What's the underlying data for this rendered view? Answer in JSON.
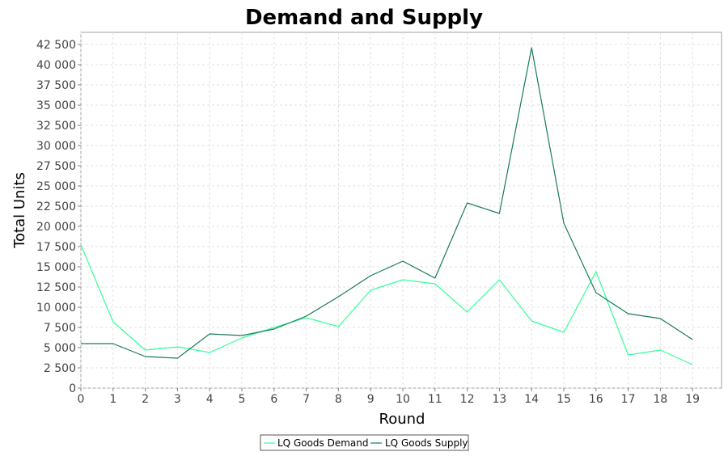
{
  "chart_data": {
    "type": "line",
    "title": "Demand and Supply",
    "xlabel": "Round",
    "ylabel": "Total Units",
    "xlim": [
      0,
      19.9
    ],
    "ylim": [
      0,
      44000
    ],
    "grid": true,
    "legend_position": "bottom",
    "x": [
      0,
      1,
      2,
      3,
      4,
      5,
      6,
      7,
      8,
      9,
      10,
      11,
      12,
      13,
      14,
      15,
      16,
      17,
      18,
      19
    ],
    "x_tick_labels": [
      "0",
      "1",
      "2",
      "3",
      "4",
      "5",
      "6",
      "7",
      "8",
      "9",
      "10",
      "11",
      "12",
      "13",
      "14",
      "15",
      "16",
      "17",
      "18",
      "19"
    ],
    "y_ticks": [
      0,
      2500,
      5000,
      7500,
      10000,
      12500,
      15000,
      17500,
      20000,
      22500,
      25000,
      27500,
      30000,
      32500,
      35000,
      37500,
      40000,
      42500
    ],
    "y_tick_labels": [
      "0",
      "2 500",
      "5 000",
      "7 500",
      "10 000",
      "12 500",
      "15 000",
      "17 500",
      "20 000",
      "22 500",
      "25 000",
      "27 500",
      "30 000",
      "32 500",
      "35 000",
      "37 500",
      "40 000",
      "42 500"
    ],
    "series": [
      {
        "name": "LQ Goods Demand",
        "color": "#33ff99",
        "values": [
          17700,
          8200,
          4700,
          5100,
          4400,
          6200,
          7500,
          8700,
          7600,
          12100,
          13400,
          12900,
          9400,
          13400,
          8300,
          6900,
          14400,
          4100,
          4700,
          2900
        ]
      },
      {
        "name": "LQ Goods Supply",
        "color": "#1a7a5a",
        "values": [
          5500,
          5500,
          3900,
          3700,
          6700,
          6500,
          7300,
          8900,
          11300,
          13900,
          15700,
          13600,
          22900,
          21600,
          42100,
          20400,
          11800,
          9200,
          8600,
          6000
        ]
      }
    ]
  }
}
